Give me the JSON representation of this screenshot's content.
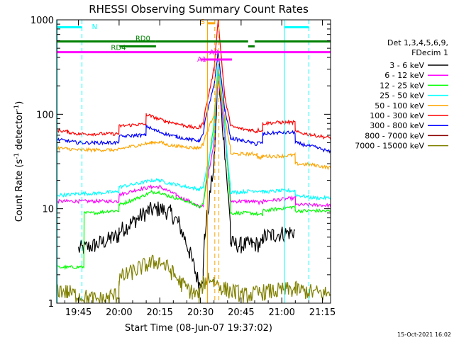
{
  "chart_data": {
    "type": "line",
    "title": "RHESSI Observing Summary Count Rates",
    "xlabel": "Start Time (08-Jun-07 19:37:02)",
    "ylabel_main": "Count Rate (s",
    "ylabel_exp1": "-1",
    "ylabel_mid": " detector",
    "ylabel_exp2": "-1",
    "ylabel_end": ")",
    "x_unit": "minutes after 19:37",
    "xlim": [
      0,
      101
    ],
    "ylim": [
      1,
      1000
    ],
    "y_scale": "log",
    "x_ticks": [
      {
        "v": 8,
        "label": "19:45"
      },
      {
        "v": 23,
        "label": "20:00"
      },
      {
        "v": 38,
        "label": "20:15"
      },
      {
        "v": 53,
        "label": "20:30"
      },
      {
        "v": 68,
        "label": "20:45"
      },
      {
        "v": 83,
        "label": "21:00"
      },
      {
        "v": 98,
        "label": "21:15"
      }
    ],
    "y_ticks": [
      {
        "v": 1,
        "label": "1"
      },
      {
        "v": 10,
        "label": "10"
      },
      {
        "v": 100,
        "label": "100"
      },
      {
        "v": 1000,
        "label": "1000"
      }
    ],
    "legend_header": [
      "Det 1,3,4,5,6,9,",
      "FDecim 1"
    ],
    "legend_position": "right",
    "series": [
      {
        "name": "3 - 6 keV",
        "color": "#000000",
        "x": [
          0,
          4,
          7.9,
          8,
          14,
          20,
          22.9,
          23,
          26,
          30,
          34,
          38,
          42,
          45,
          47,
          49,
          51,
          52.5,
          54,
          54.5,
          58,
          59.5,
          62,
          64,
          64.1,
          68,
          72,
          75.9,
          76,
          80,
          86,
          87.9,
          88
        ],
        "y": [
          null,
          null,
          null,
          3.7,
          4.1,
          4.8,
          5.2,
          5.8,
          6.5,
          8,
          9.5,
          10,
          9,
          7,
          5,
          3.5,
          2.2,
          1.6,
          2,
          5,
          30,
          250,
          40,
          7,
          4.3,
          4.1,
          4.2,
          4.2,
          5,
          5.3,
          5.6,
          5.8,
          null
        ]
      },
      {
        "name": "6 - 12 keV",
        "color": "#ff00ff",
        "x": [
          0,
          4,
          8,
          14,
          20,
          22.9,
          23,
          30,
          35,
          38,
          40,
          42,
          44,
          46,
          49,
          51,
          52.5,
          54,
          54.5,
          58,
          59.5,
          62,
          64,
          64.1,
          68,
          72,
          75.9,
          76,
          82,
          88,
          88.1,
          95,
          101
        ],
        "y": [
          12,
          12,
          12,
          12,
          12,
          12,
          14,
          16,
          17,
          17,
          16,
          15,
          14,
          13,
          12,
          11,
          10.5,
          11,
          14,
          50,
          280,
          60,
          14,
          12,
          12,
          12,
          11.5,
          12,
          12.5,
          13,
          11,
          11,
          10.8
        ]
      },
      {
        "name": "12 - 25 keV",
        "color": "#00ff00",
        "x": [
          0,
          4,
          7.9,
          8,
          10,
          10.1,
          14,
          20,
          22.9,
          23,
          30,
          35,
          38,
          40,
          44,
          48,
          51,
          52.5,
          54,
          54.5,
          58,
          59.5,
          62,
          64,
          64.1,
          68,
          72,
          75.9,
          76,
          82,
          87.9,
          88,
          95,
          101
        ],
        "y": [
          2.4,
          2.4,
          2.4,
          2.4,
          2.4,
          9,
          9,
          9.5,
          9.5,
          11,
          13,
          15,
          15,
          14,
          13,
          12,
          11,
          10.5,
          11,
          14,
          80,
          350,
          80,
          12,
          9,
          9,
          9,
          8.5,
          9.5,
          10,
          10.5,
          9.5,
          9.5,
          9.4
        ]
      },
      {
        "name": "25 - 50 keV",
        "color": "#00ffff",
        "x": [
          0,
          4,
          8,
          14,
          20,
          22.9,
          23,
          30,
          35,
          38,
          40,
          44,
          48,
          51,
          52.5,
          54,
          54.5,
          58,
          59.5,
          62,
          64,
          64.1,
          68,
          72,
          75.9,
          76,
          82,
          87.9,
          88,
          95,
          101
        ],
        "y": [
          14,
          14,
          14.5,
          14.5,
          15,
          15,
          17,
          18.5,
          20,
          20,
          19,
          18,
          17,
          16.5,
          16,
          17,
          20,
          60,
          320,
          70,
          18,
          15,
          15,
          15.5,
          15.5,
          15,
          15.5,
          15.5,
          14,
          13,
          13
        ]
      },
      {
        "name": "50 - 100 keV",
        "color": "#ffa500",
        "x": [
          0,
          4,
          8,
          14,
          20,
          22.9,
          23,
          30,
          35,
          38,
          40,
          44,
          48,
          51,
          52.5,
          54,
          54.5,
          58,
          59.5,
          62,
          64,
          64.1,
          68,
          72,
          73.9,
          74,
          75.9,
          76,
          82,
          87.9,
          88,
          95,
          101
        ],
        "y": [
          44,
          43,
          42,
          42,
          42,
          42,
          43,
          47,
          50,
          51,
          48,
          46,
          45,
          44,
          44,
          48,
          55,
          100,
          250,
          90,
          45,
          38,
          38,
          38,
          38,
          35,
          35,
          36,
          36,
          37,
          30,
          29,
          27
        ]
      },
      {
        "name": "100 - 300 keV",
        "color": "#ff0000",
        "x": [
          0,
          4,
          8,
          14,
          20,
          22.9,
          23,
          30,
          32.9,
          33,
          36,
          40,
          44,
          48,
          51,
          52.5,
          54,
          54.5,
          58,
          59.5,
          62,
          64,
          64.1,
          68,
          72,
          73.9,
          74,
          75.9,
          76,
          82,
          87.9,
          88,
          95,
          101
        ],
        "y": [
          68,
          65,
          62,
          62,
          62,
          62,
          75,
          78,
          78,
          100,
          92,
          85,
          80,
          75,
          72,
          72,
          80,
          100,
          300,
          1000,
          150,
          80,
          75,
          70,
          68,
          65,
          68,
          68,
          80,
          82,
          82,
          65,
          60,
          56
        ]
      },
      {
        "name": "300 - 800 keV",
        "color": "#0000ff",
        "x": [
          0,
          4,
          8,
          14,
          20,
          22.9,
          23,
          30,
          32.9,
          33,
          36,
          40,
          44,
          48,
          51,
          52.5,
          54,
          54.5,
          58,
          59.5,
          62,
          64,
          64.1,
          68,
          72,
          73.9,
          74,
          75.9,
          76,
          82,
          87.9,
          88,
          95,
          101
        ],
        "y": [
          54,
          52,
          50,
          50,
          50,
          50,
          58,
          60,
          60,
          75,
          68,
          62,
          58,
          55,
          53,
          53,
          60,
          80,
          200,
          450,
          110,
          60,
          56,
          53,
          50,
          48,
          50,
          50,
          62,
          64,
          64,
          50,
          45,
          40
        ]
      },
      {
        "name": "800 - 7000 keV",
        "color": "#8b0000",
        "x": [],
        "y": []
      },
      {
        "name": "7000 - 15000 keV",
        "color": "#808000",
        "x": [
          0,
          4,
          8,
          14,
          18,
          20,
          22.9,
          23,
          26,
          30,
          34,
          38,
          42,
          46,
          50,
          52.5,
          54,
          56,
          58,
          62,
          66,
          70,
          76,
          82,
          88,
          94,
          101
        ],
        "y": [
          1.4,
          1.3,
          1.2,
          1.1,
          1.1,
          1.2,
          1.2,
          1.8,
          2.0,
          2.3,
          2.6,
          2.8,
          2.2,
          1.6,
          1.3,
          1.2,
          1.6,
          1.9,
          1.7,
          1.4,
          1.3,
          1.2,
          1.3,
          1.35,
          1.4,
          1.3,
          1.25
        ]
      }
    ],
    "annotations": {
      "vlines": [
        {
          "x": 0.2,
          "color": "#00ffff",
          "dash": false
        },
        {
          "x": 9.3,
          "color": "#00ffff",
          "dash": true
        },
        {
          "x": 55.6,
          "color": "#ffa500",
          "dash": false
        },
        {
          "x": 58.3,
          "color": "#ffa500",
          "dash": true
        },
        {
          "x": 59.8,
          "color": "#ffa500",
          "dash": true
        },
        {
          "x": 84,
          "color": "#00ffff",
          "dash": false
        },
        {
          "x": 93,
          "color": "#00ffff",
          "dash": true
        }
      ],
      "bars": [
        {
          "name": "N",
          "color": "#00ffff",
          "y": 835,
          "segments": [
            [
              0,
              9.3
            ],
            [
              84,
              93
            ]
          ]
        },
        {
          "name": "RD0",
          "color": "#008000",
          "y": 590,
          "segments": [
            [
              0,
              36.6
            ],
            [
              36.6,
              70.6
            ],
            [
              73,
              101
            ]
          ]
        },
        {
          "name": "RD4",
          "color": "#008000",
          "y": 524,
          "segments": [
            [
              23.1,
              36.6
            ],
            [
              70.6,
              73
            ]
          ]
        },
        {
          "name": "A0",
          "color": "#ff00ff",
          "y": 455,
          "segments": [
            [
              0,
              101
            ]
          ]
        },
        {
          "name": "A1",
          "color": "#ff00ff",
          "y": 380,
          "segments": [
            [
              53.2,
              64.6
            ]
          ]
        },
        {
          "name": "S",
          "color": "#ffa500",
          "y": 920,
          "segments": [
            [
              55.6,
              58.3
            ]
          ]
        }
      ],
      "labels": [
        {
          "text": "N",
          "x": 13,
          "y": 800,
          "color": "#00ffff"
        },
        {
          "text": "RD0",
          "x": 29,
          "y": 600,
          "color": "#008000"
        },
        {
          "text": "RD4",
          "x": 20,
          "y": 480,
          "color": "#008000"
        },
        {
          "text": "A0",
          "x": 56.3,
          "y": 430,
          "color": "#ff00ff"
        },
        {
          "text": "A1",
          "x": 51.8,
          "y": 360,
          "color": "#ff00ff"
        },
        {
          "text": "S",
          "x": 53,
          "y": 900,
          "color": "#ffa500"
        }
      ]
    }
  },
  "footer": {
    "timestamp": "15-Oct-2021 16:02"
  }
}
